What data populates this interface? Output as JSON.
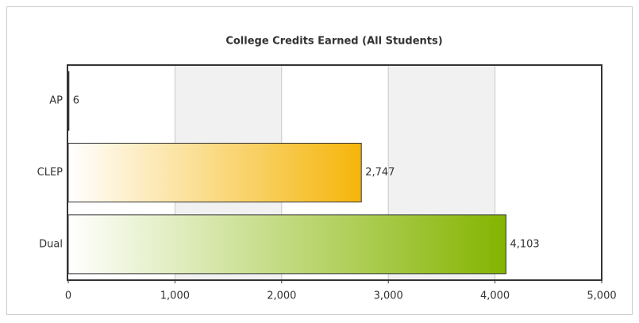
{
  "chart_data": {
    "type": "bar",
    "orientation": "horizontal",
    "title": "College Credits Earned (All Students)",
    "categories": [
      "AP",
      "CLEP",
      "Dual"
    ],
    "values": [
      6,
      2747,
      4103
    ],
    "value_labels": [
      "6",
      "2,747",
      "4,103"
    ],
    "colors": [
      "#2f7fd0",
      "#f5b50a",
      "#84b400"
    ],
    "xlim": [
      0,
      5000
    ],
    "xticks": [
      0,
      {
        "value": 1000,
        "label": "1,000"
      },
      {
        "value": 2000,
        "label": "2,000"
      },
      {
        "value": 3000,
        "label": "3,000"
      },
      {
        "value": 4000,
        "label": "4,000"
      },
      {
        "value": 5000,
        "label": "5,000"
      }
    ],
    "grid": true
  }
}
